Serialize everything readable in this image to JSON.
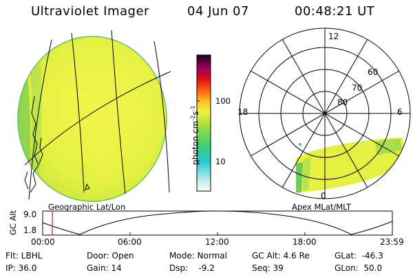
{
  "header": {
    "title": "Ultraviolet Imager",
    "date": "04 Jun 07",
    "time": "00:48:21 UT"
  },
  "colorbar": {
    "unit_main": "photon cm",
    "unit_sup1": "-2",
    "unit_s": "s",
    "unit_sup2": "-1",
    "tick_100": "100",
    "tick_10": "10"
  },
  "panels": {
    "left_label": "Geographic Lat/Lon",
    "right_label": "Apex MLat/MLT"
  },
  "polar": {
    "mlt_12": "12",
    "mlt_18": "18",
    "mlt_6": "6",
    "mlt_0": "0",
    "lat_60": "60",
    "lat_70": "70",
    "lat_80": "80"
  },
  "altitude_plot": {
    "ylabel": "GC Alt",
    "ytick_high": "9.0",
    "ytick_low": "1.8",
    "xticks": [
      "00:00",
      "06:00",
      "12:00",
      "18:00",
      "23:59"
    ]
  },
  "status": {
    "filter": "Flt: LBHL",
    "ip": "IP: 36.0",
    "door": "Door: Open",
    "gain": "Gain: 14",
    "mode": "Mode: Normal",
    "dsp": "Dsp:    -9.2",
    "gc_alt": "GC Alt: 4.6 Re",
    "seq": "Seq: 39",
    "glat": "GLat:  -46.3",
    "glon": "GLon:  50.0"
  },
  "colors": {
    "image_fill": "#e8f34a",
    "image_edge": "#3fbf55",
    "time_marker": "#cc2222"
  }
}
